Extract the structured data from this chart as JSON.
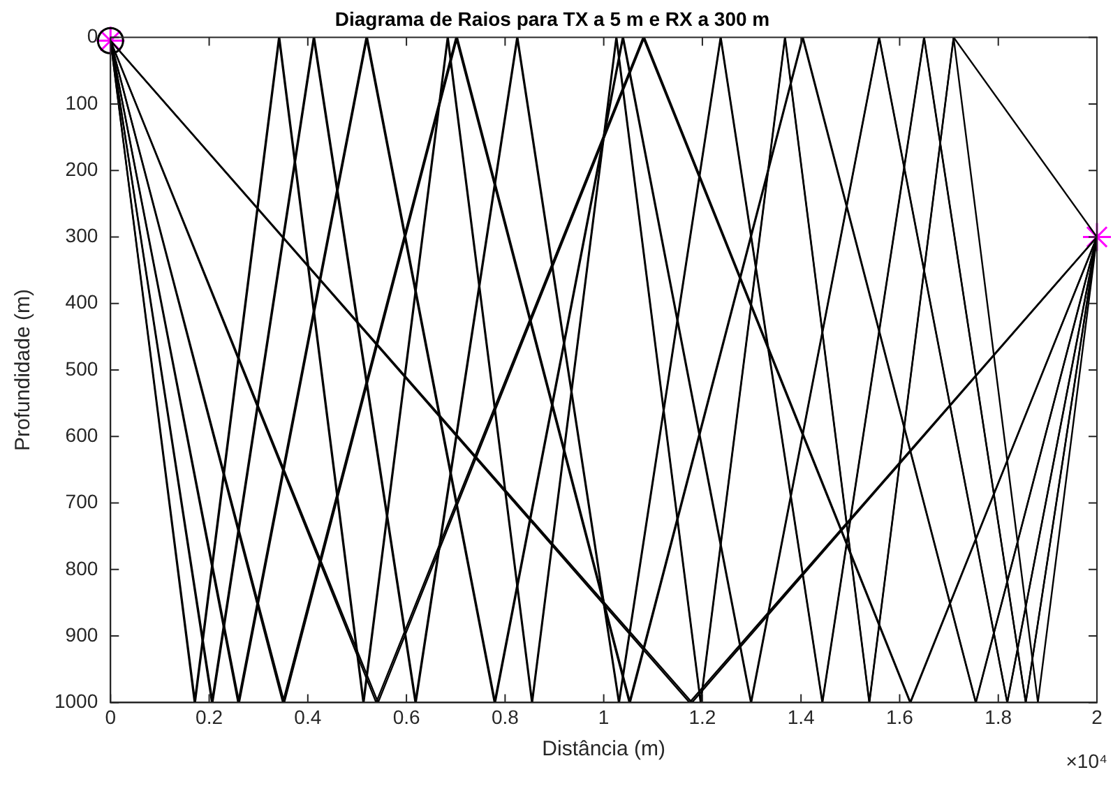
{
  "chart_data": {
    "type": "line",
    "title": "Diagrama de Raios para TX a 5 m e RX a 300 m",
    "xlabel": "Distância (m)",
    "ylabel": "Profundidade (m)",
    "annotations": [
      "×10⁴"
    ],
    "xlim": [
      0,
      2
    ],
    "xticks": [
      0,
      0.2,
      0.4,
      0.6,
      0.8,
      1,
      1.2,
      1.4,
      1.6,
      1.8,
      2
    ],
    "ylim": [
      1000,
      0
    ],
    "yticks": [
      0,
      100,
      200,
      300,
      400,
      500,
      600,
      700,
      800,
      900,
      1000
    ],
    "grid": false,
    "legend": false,
    "marker": "none",
    "line_style": "solid",
    "series": [
      {
        "color": "#000000",
        "x": [
          0,
          1.174,
          2
        ],
        "values": [
          5,
          1000,
          300
        ]
      },
      {
        "color": "#000000",
        "x": [
          0,
          0.5386,
          1.0798,
          1.6211,
          2
        ],
        "values": [
          5,
          1000,
          0,
          1000,
          300
        ]
      },
      {
        "color": "#000000",
        "x": [
          0,
          0.3494,
          0.7006,
          1.0518,
          1.403,
          1.7542,
          2
        ],
        "values": [
          5,
          1000,
          0,
          1000,
          0,
          1000,
          300
        ]
      },
      {
        "color": "#000000",
        "x": [
          0,
          0.2586,
          0.5185,
          0.7784,
          1.0383,
          1.2983,
          1.5582,
          1.8181,
          2
        ],
        "values": [
          5,
          1000,
          0,
          1000,
          0,
          1000,
          0,
          1000,
          300
        ]
      },
      {
        "color": "#000000",
        "x": [
          0,
          0.2053,
          0.4116,
          0.6178,
          0.8241,
          1.0304,
          1.2367,
          1.443,
          1.6493,
          1.8556,
          2
        ],
        "values": [
          5,
          1000,
          0,
          1000,
          0,
          1000,
          0,
          1000,
          0,
          1000,
          300
        ]
      },
      {
        "color": "#000000",
        "x": [
          0,
          0.1702,
          0.3412,
          0.5122,
          0.6832,
          0.8542,
          1.0252,
          1.1962,
          1.3673,
          1.5383,
          1.7093,
          1.8803,
          2
        ],
        "values": [
          5,
          1000,
          0,
          1000,
          0,
          1000,
          0,
          1000,
          0,
          1000,
          0,
          1000,
          300
        ]
      },
      {
        "color": "#000000",
        "x": [
          0,
          1.1789,
          2
        ],
        "values": [
          5,
          1000,
          300
        ]
      },
      {
        "color": "#000000",
        "x": [
          0,
          0.5425,
          1.0823,
          1.6221,
          2
        ],
        "values": [
          5,
          1000,
          0,
          1000,
          300
        ]
      },
      {
        "color": "#000000",
        "x": [
          0,
          0.3523,
          0.7029,
          1.0535,
          1.404,
          1.7546,
          2
        ],
        "values": [
          5,
          1000,
          0,
          1000,
          0,
          1000,
          300
        ]
      },
      {
        "color": "#000000",
        "x": [
          0,
          0.2609,
          0.5204,
          0.78,
          1.0396,
          1.2992,
          1.5587,
          1.8183,
          2
        ],
        "values": [
          5,
          1000,
          0,
          1000,
          0,
          1000,
          0,
          1000,
          300
        ]
      },
      {
        "color": "#000000",
        "x": [
          0,
          0.2071,
          0.4132,
          0.6193,
          0.8254,
          1.0314,
          1.2375,
          1.4436,
          1.6497,
          1.8557,
          2
        ],
        "values": [
          5,
          1000,
          0,
          1000,
          0,
          1000,
          0,
          1000,
          0,
          1000,
          300
        ]
      },
      {
        "color": "#000000",
        "x": [
          0,
          0.1717,
          0.3426,
          0.5135,
          0.6843,
          0.8552,
          1.0261,
          1.1969,
          1.3678,
          1.5387,
          1.7095,
          2
        ],
        "values": [
          5,
          1000,
          0,
          1000,
          0,
          1000,
          0,
          1000,
          0,
          1000,
          0,
          300
        ]
      },
      {
        "type": "scatter",
        "color": "#000000",
        "marker": "circle",
        "x": [
          0
        ],
        "values": [
          5
        ]
      },
      {
        "type": "scatter",
        "color": "#ff00ff",
        "marker": "cross",
        "x": [
          0,
          2
        ],
        "values": [
          5,
          300
        ]
      }
    ]
  }
}
